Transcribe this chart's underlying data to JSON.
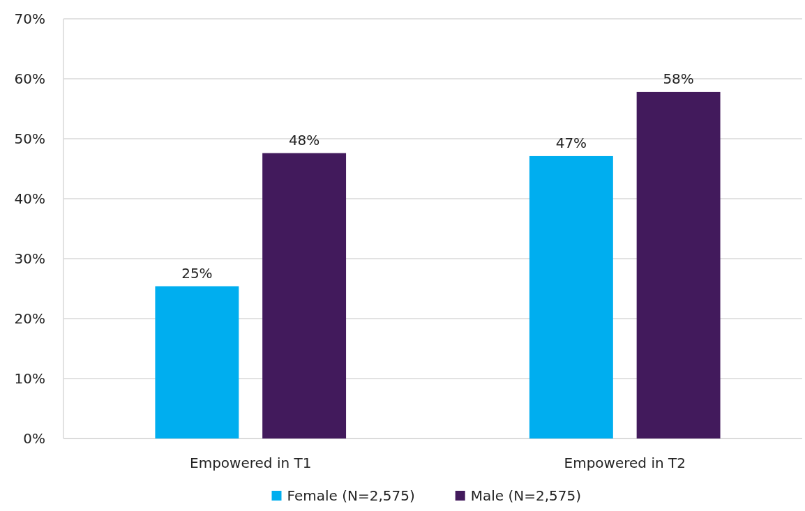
{
  "chart_data": {
    "type": "bar",
    "categories": [
      "Empowered in T1",
      "Empowered in T2"
    ],
    "series": [
      {
        "name": "Female (N=2,575)",
        "color": "#00aeef",
        "values": [
          25.4,
          47.1
        ],
        "value_labels": [
          "25%",
          "47%"
        ]
      },
      {
        "name": "Male (N=2,575)",
        "color": "#421a5c",
        "values": [
          47.6,
          57.8
        ],
        "value_labels": [
          "48%",
          "58%"
        ]
      }
    ],
    "ylim": [
      0,
      70
    ],
    "yticks": [
      {
        "value": 0,
        "label": "0%"
      },
      {
        "value": 10,
        "label": "10%"
      },
      {
        "value": 20,
        "label": "20%"
      },
      {
        "value": 30,
        "label": "30%"
      },
      {
        "value": 40,
        "label": "40%"
      },
      {
        "value": 50,
        "label": "50%"
      },
      {
        "value": 60,
        "label": "60%"
      },
      {
        "value": 70,
        "label": "70%"
      }
    ],
    "grid": "y",
    "legend": "bottom"
  }
}
